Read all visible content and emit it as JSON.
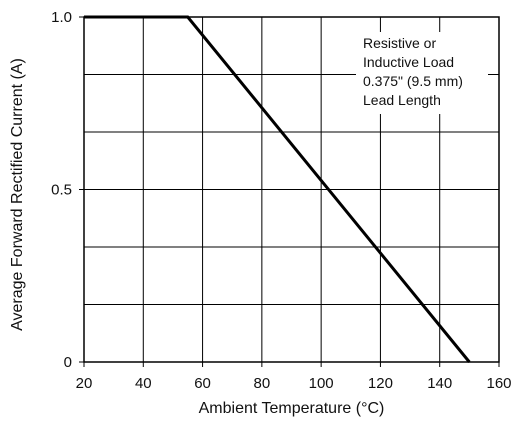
{
  "chart_data": {
    "type": "line",
    "title": "",
    "xlabel": "Ambient Temperature (°C)",
    "ylabel": "Average Forward Rectified Current (A)",
    "xlim": [
      20,
      160
    ],
    "ylim": [
      0,
      1.0
    ],
    "x_ticks": [
      20,
      40,
      60,
      80,
      100,
      120,
      140,
      160
    ],
    "x_tick_labels": [
      "20",
      "40",
      "60",
      "80",
      "100",
      "120",
      "140",
      "160"
    ],
    "y_ticks": [
      0,
      0.5,
      1.0
    ],
    "y_tick_labels": [
      "0",
      "0.5",
      "1.0"
    ],
    "x_grid": [
      20,
      40,
      60,
      80,
      100,
      120,
      140,
      160
    ],
    "y_grid": [
      0,
      0.1667,
      0.3333,
      0.5,
      0.6667,
      0.8333,
      1.0
    ],
    "grid": true,
    "series": [
      {
        "x": [
          20,
          55,
          150
        ],
        "y": [
          1.0,
          1.0,
          0
        ],
        "color": "#000000"
      }
    ],
    "annotation": {
      "lines": [
        "Resistive or",
        "Inductive Load",
        "0.375\" (9.5 mm)",
        "Lead Length"
      ]
    }
  }
}
